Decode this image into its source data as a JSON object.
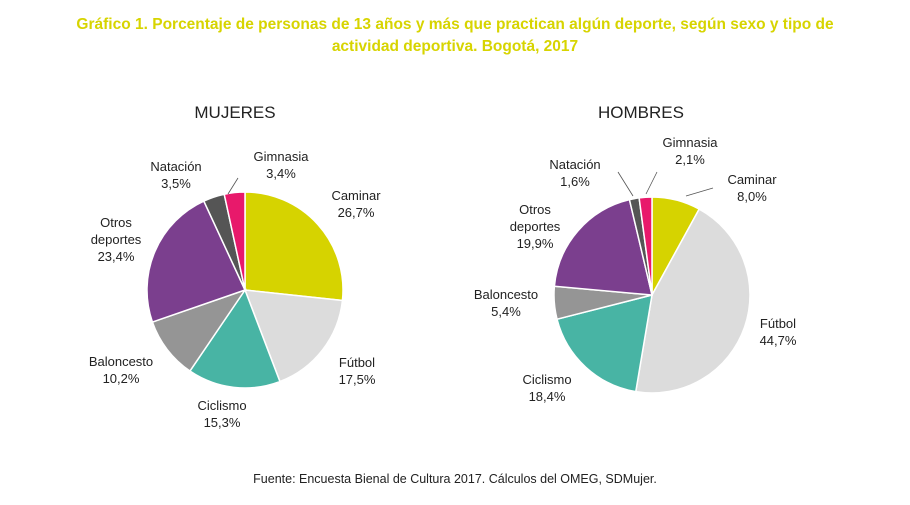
{
  "title": {
    "line1": "Gráfico 1. Porcentaje de personas de 13 años y más que practican algún deporte, según sexo y tipo de",
    "line2": "actividad deportiva. Bogotá, 2017"
  },
  "source": "Fuente: Encuesta Bienal de Cultura 2017. Cálculos del OMEG, SDMujer.",
  "colors": {
    "Caminar": "#d6d300",
    "Fútbol": "#dcdcdc",
    "Ciclismo": "#48b4a4",
    "Baloncesto": "#959595",
    "Otros deportes": "#7b3f8e",
    "Natación": "#555555",
    "Gimnasia": "#e8196b"
  },
  "chart_data": [
    {
      "type": "pie",
      "title": "MUJERES",
      "slices": [
        {
          "key": "Caminar",
          "label": [
            "Caminar"
          ],
          "value_label": "26,7%",
          "value": 26.7
        },
        {
          "key": "Fútbol",
          "label": [
            "Fútbol"
          ],
          "value_label": "17,5%",
          "value": 17.5
        },
        {
          "key": "Ciclismo",
          "label": [
            "Ciclismo"
          ],
          "value_label": "15,3%",
          "value": 15.3
        },
        {
          "key": "Baloncesto",
          "label": [
            "Baloncesto"
          ],
          "value_label": "10,2%",
          "value": 10.2
        },
        {
          "key": "Otros deportes",
          "label": [
            "Otros",
            "deportes"
          ],
          "value_label": "23,4%",
          "value": 23.4
        },
        {
          "key": "Natación",
          "label": [
            "Natación"
          ],
          "value_label": "3,5%",
          "value": 3.5
        },
        {
          "key": "Gimnasia",
          "label": [
            "Gimnasia"
          ],
          "value_label": "3,4%",
          "value": 3.4
        }
      ]
    },
    {
      "type": "pie",
      "title": "HOMBRES",
      "slices": [
        {
          "key": "Caminar",
          "label": [
            "Caminar"
          ],
          "value_label": "8,0%",
          "value": 8.0
        },
        {
          "key": "Fútbol",
          "label": [
            "Fútbol"
          ],
          "value_label": "44,7%",
          "value": 44.7
        },
        {
          "key": "Ciclismo",
          "label": [
            "Ciclismo"
          ],
          "value_label": "18,4%",
          "value": 18.4
        },
        {
          "key": "Baloncesto",
          "label": [
            "Baloncesto"
          ],
          "value_label": "5,4%",
          "value": 5.4
        },
        {
          "key": "Otros deportes",
          "label": [
            "Otros",
            "deportes"
          ],
          "value_label": "19,9%",
          "value": 19.9
        },
        {
          "key": "Natación",
          "label": [
            "Natación"
          ],
          "value_label": "1,6%",
          "value": 1.6
        },
        {
          "key": "Gimnasia",
          "label": [
            "Gimnasia"
          ],
          "value_label": "2,1%",
          "value": 2.1
        }
      ]
    }
  ]
}
